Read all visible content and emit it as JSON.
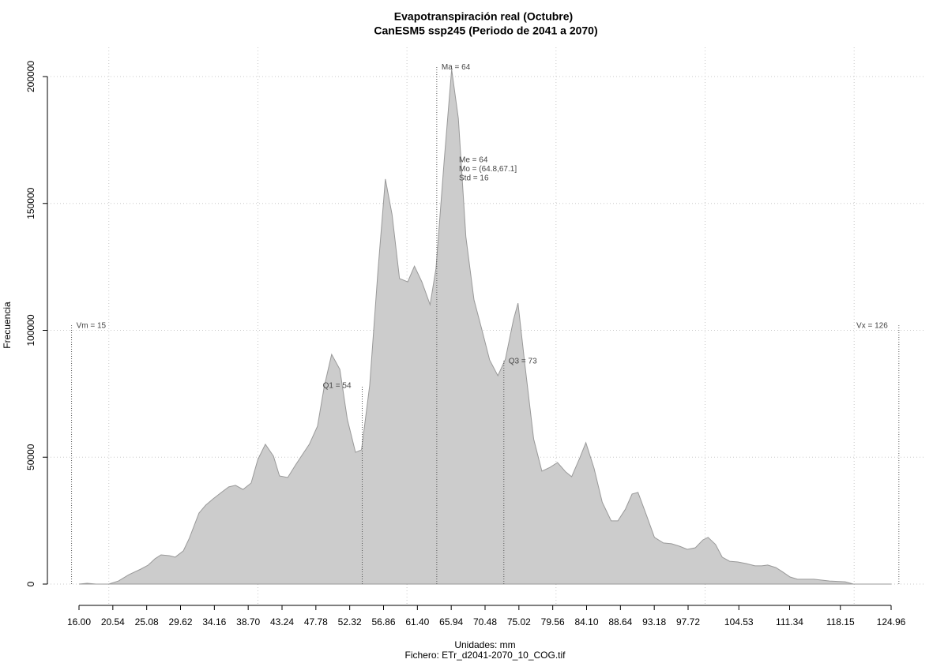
{
  "chart_data": {
    "type": "area",
    "title": "Evapotranspiración real (Octubre)",
    "subtitle": "CanESM5 ssp245 (Periodo de 2041 a 2070)",
    "x_label": "Unidades: mm",
    "caption": "Fichero: ETr_d2041-2070_10_COG.tif",
    "y_label": "Frecuencia",
    "color": "#cccccc",
    "edge_color": "#999999",
    "grid": true,
    "x": [
      16.0,
      17.1,
      18.3,
      20.0,
      21.3,
      22.7,
      24.3,
      25.3,
      26.2,
      27.0,
      28.1,
      28.9,
      30.0,
      30.8,
      32.1,
      33.0,
      34.0,
      35.1,
      36.1,
      37.0,
      38.0,
      39.1,
      40.0,
      41.0,
      42.1,
      42.9,
      44.0,
      45.0,
      46.1,
      46.9,
      48.0,
      48.9,
      49.9,
      51.0,
      52.0,
      53.1,
      53.9,
      55.0,
      56.1,
      57.1,
      58.0,
      59.0,
      60.1,
      61.0,
      62.0,
      63.1,
      63.9,
      65.0,
      66.0,
      66.9,
      67.9,
      69.0,
      70.0,
      71.1,
      72.2,
      73.2,
      74.3,
      74.9,
      75.8,
      77.0,
      78.1,
      79.2,
      80.2,
      81.3,
      82.1,
      83.2,
      84.0,
      85.1,
      86.2,
      87.4,
      88.3,
      89.3,
      90.2,
      91.0,
      92.1,
      93.2,
      94.4,
      95.5,
      96.6,
      97.6,
      98.7,
      99.7,
      100.4,
      101.4,
      102.3,
      103.3,
      104.4,
      105.5,
      106.7,
      107.6,
      108.4,
      109.5,
      110.3,
      111.4,
      112.4,
      114.6,
      116.7,
      118.8,
      119.9,
      125.0
    ],
    "values": [
      0,
      300,
      0,
      0,
      1200,
      3700,
      5900,
      7500,
      10000,
      11500,
      11200,
      10600,
      13100,
      18000,
      28000,
      31100,
      33600,
      36100,
      38300,
      38900,
      37300,
      39800,
      49100,
      55100,
      50400,
      42600,
      42000,
      46700,
      51600,
      55100,
      62200,
      77800,
      90500,
      84600,
      65000,
      51900,
      52900,
      78400,
      122900,
      159600,
      145600,
      120400,
      119100,
      125300,
      119100,
      110100,
      124400,
      167000,
      202800,
      183500,
      136900,
      112000,
      100800,
      88300,
      82100,
      88600,
      104200,
      110700,
      87100,
      57200,
      44500,
      46000,
      47900,
      44200,
      42300,
      49800,
      55700,
      45700,
      32300,
      24900,
      24900,
      29500,
      35500,
      36100,
      27400,
      18400,
      16200,
      15900,
      14900,
      13700,
      14300,
      17400,
      18400,
      15600,
      10600,
      9000,
      8700,
      8100,
      7200,
      7200,
      7500,
      6500,
      5000,
      2800,
      1900,
      1900,
      1200,
      900,
      0,
      0
    ],
    "xlim": [
      16.0,
      124.96
    ],
    "ylim": [
      0,
      200000
    ],
    "xticks": [
      {
        "value": 16.0,
        "label": "16.00"
      },
      {
        "value": 20.54,
        "label": "20.54"
      },
      {
        "value": 25.08,
        "label": "25.08"
      },
      {
        "value": 29.62,
        "label": "29.62"
      },
      {
        "value": 34.16,
        "label": "34.16"
      },
      {
        "value": 38.7,
        "label": "38.70"
      },
      {
        "value": 43.24,
        "label": "43.24"
      },
      {
        "value": 47.78,
        "label": "47.78"
      },
      {
        "value": 52.32,
        "label": "52.32"
      },
      {
        "value": 56.86,
        "label": "56.86"
      },
      {
        "value": 61.4,
        "label": "61.40"
      },
      {
        "value": 65.94,
        "label": "65.94"
      },
      {
        "value": 70.48,
        "label": "70.48"
      },
      {
        "value": 75.02,
        "label": "75.02"
      },
      {
        "value": 79.56,
        "label": "79.56"
      },
      {
        "value": 84.1,
        "label": "84.10"
      },
      {
        "value": 88.64,
        "label": "88.64"
      },
      {
        "value": 93.18,
        "label": "93.18"
      },
      {
        "value": 97.72,
        "label": "97.72"
      },
      {
        "value": 104.53,
        "label": "104.53"
      },
      {
        "value": 111.34,
        "label": "111.34"
      },
      {
        "value": 118.15,
        "label": "118.15"
      },
      {
        "value": 124.96,
        "label": "124.96"
      }
    ],
    "xgrid": [
      20,
      40,
      60,
      80,
      100,
      120
    ],
    "yticks": [
      0,
      50000,
      100000,
      150000,
      200000
    ],
    "annotations": [
      {
        "text": "Vm = 15",
        "x": 15,
        "y": 102000,
        "side": "right"
      },
      {
        "text": "Q1 = 54",
        "x": 54,
        "y": 78400,
        "side": "left"
      },
      {
        "text": "Ma = 64",
        "x": 64,
        "y": 204000,
        "side": "right"
      },
      {
        "text": "Q3 = 73",
        "x": 73,
        "y": 88000,
        "side": "right"
      },
      {
        "text": "Vx = 126",
        "x": 126,
        "y": 102000,
        "side": "left"
      }
    ],
    "stats": [
      "Me = 64",
      "Mo = (64.8,67.1]",
      "Std = 16"
    ]
  }
}
